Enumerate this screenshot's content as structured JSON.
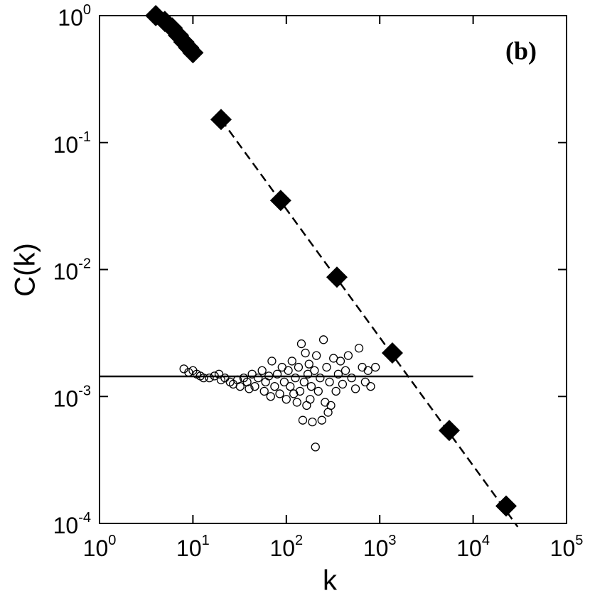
{
  "chart_data": {
    "type": "scatter",
    "xlabel": "k",
    "ylabel": "C(k)",
    "annotation": "(b)",
    "xscale": "log",
    "yscale": "log",
    "xlim": [
      1,
      100000
    ],
    "ylim": [
      0.0001,
      1
    ],
    "xticks": [
      {
        "value": 1,
        "label": "10^0"
      },
      {
        "value": 10,
        "label": "10^1"
      },
      {
        "value": 100,
        "label": "10^2"
      },
      {
        "value": 1000,
        "label": "10^3"
      },
      {
        "value": 10000,
        "label": "10^4"
      },
      {
        "value": 100000,
        "label": "10^5"
      }
    ],
    "yticks": [
      {
        "value": 0.0001,
        "label": "10^-4"
      },
      {
        "value": 0.001,
        "label": "10^-3"
      },
      {
        "value": 0.01,
        "label": "10^-2"
      },
      {
        "value": 0.1,
        "label": "10^-1"
      },
      {
        "value": 1,
        "label": "10^0"
      }
    ],
    "series": [
      {
        "mode": "markers",
        "marker": "diamond",
        "color": "#000000",
        "x": [
          4,
          5,
          6,
          7,
          8,
          9,
          10,
          20,
          87,
          348,
          1365,
          5550,
          22550
        ],
        "values": [
          1.0,
          0.9,
          0.8,
          0.7,
          0.62,
          0.56,
          0.51,
          0.152,
          0.035,
          0.0087,
          0.0022,
          0.00054,
          0.000137
        ]
      },
      {
        "mode": "markers",
        "marker": "circle",
        "color": "#000000",
        "x": [
          8,
          9,
          10,
          11,
          12,
          13,
          15,
          17,
          19,
          20,
          22,
          25,
          27,
          30,
          32,
          35,
          38,
          40,
          43,
          46,
          50,
          55,
          58,
          60,
          65,
          68,
          70,
          75,
          80,
          85,
          90,
          95,
          100,
          105,
          110,
          115,
          120,
          125,
          130,
          135,
          140,
          145,
          150,
          155,
          160,
          165,
          170,
          175,
          180,
          185,
          190,
          200,
          205,
          210,
          220,
          230,
          240,
          250,
          260,
          270,
          280,
          290,
          300,
          320,
          340,
          360,
          380,
          400,
          430,
          460,
          500,
          550,
          600,
          650,
          700,
          750,
          800,
          900
        ],
        "values": [
          0.00165,
          0.00155,
          0.0016,
          0.0015,
          0.00145,
          0.0014,
          0.0014,
          0.00145,
          0.0015,
          0.00135,
          0.0014,
          0.0013,
          0.00125,
          0.00135,
          0.0012,
          0.0014,
          0.0013,
          0.00115,
          0.0015,
          0.0012,
          0.0014,
          0.0016,
          0.0011,
          0.0013,
          0.00145,
          0.001,
          0.0019,
          0.0012,
          0.0015,
          0.00105,
          0.0017,
          0.0013,
          0.00095,
          0.0016,
          0.0012,
          0.0019,
          0.00105,
          0.0014,
          0.0009,
          0.0017,
          0.0011,
          0.0026,
          0.00065,
          0.0013,
          0.0022,
          0.00085,
          0.0015,
          0.0018,
          0.00095,
          0.0012,
          0.00063,
          0.0016,
          0.0004,
          0.0021,
          0.0011,
          0.0014,
          0.00065,
          0.0028,
          0.0009,
          0.0017,
          0.00075,
          0.0013,
          0.00085,
          0.002,
          0.0011,
          0.0015,
          0.0019,
          0.00125,
          0.0016,
          0.0021,
          0.0014,
          0.00115,
          0.0024,
          0.0017,
          0.0013,
          0.0016,
          0.0012,
          0.0017
        ]
      },
      {
        "mode": "line",
        "dash": true,
        "color": "#000000",
        "x": [
          20,
          30000
        ],
        "values": [
          0.152,
          9.4e-05
        ]
      },
      {
        "mode": "line",
        "dash": false,
        "color": "#000000",
        "x": [
          1,
          10000
        ],
        "values": [
          0.00144,
          0.00144
        ]
      }
    ]
  }
}
